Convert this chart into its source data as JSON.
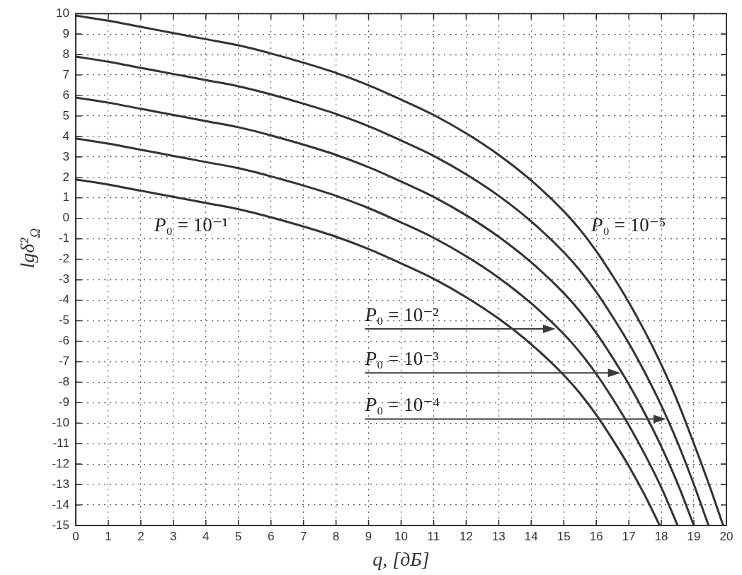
{
  "chart_data": {
    "type": "line",
    "xlabel": "q, [дБ]",
    "ylabel": "lgδ²$_{Ω}$",
    "xlim": [
      0,
      20
    ],
    "ylim": [
      -15,
      10
    ],
    "xticks": [
      0,
      1,
      2,
      3,
      4,
      5,
      6,
      7,
      8,
      9,
      10,
      11,
      12,
      13,
      14,
      15,
      16,
      17,
      18,
      19,
      20
    ],
    "yticks": [
      -15,
      -14,
      -13,
      -12,
      -11,
      -10,
      -9,
      -8,
      -7,
      -6,
      -5,
      -4,
      -3,
      -2,
      -1,
      0,
      1,
      2,
      3,
      4,
      5,
      6,
      7,
      8,
      9,
      10
    ],
    "grid": true,
    "series": [
      {
        "color": "#333333",
        "x": [
          0,
          1,
          2,
          3,
          4,
          5,
          6,
          7,
          8,
          9,
          10,
          11,
          12,
          13,
          14,
          15,
          15.5,
          16,
          16.5,
          17,
          17.5,
          17.95
        ],
        "values": [
          1.9,
          1.65,
          1.35,
          1.05,
          0.75,
          0.45,
          0.05,
          -0.4,
          -0.9,
          -1.5,
          -2.2,
          -2.95,
          -3.85,
          -4.9,
          -6.15,
          -7.65,
          -8.55,
          -9.6,
          -10.8,
          -12.1,
          -13.55,
          -15
        ]
      },
      {
        "color": "#333333",
        "x": [
          0,
          1,
          2,
          3,
          4,
          5,
          6,
          7,
          8,
          9,
          10,
          11,
          12,
          13,
          14,
          15,
          15.5,
          16,
          16.5,
          17,
          17.5,
          18,
          18.5
        ],
        "values": [
          3.9,
          3.65,
          3.35,
          3.05,
          2.75,
          2.45,
          2.05,
          1.6,
          1.1,
          0.5,
          -0.2,
          -0.95,
          -1.85,
          -2.9,
          -4.15,
          -5.65,
          -6.55,
          -7.6,
          -8.8,
          -10.1,
          -11.55,
          -13.15,
          -15
        ]
      },
      {
        "color": "#333333",
        "x": [
          0,
          1,
          2,
          3,
          4,
          5,
          6,
          7,
          8,
          9,
          10,
          11,
          12,
          13,
          14,
          15,
          15.5,
          16,
          16.5,
          17,
          17.5,
          18,
          18.5,
          19
        ],
        "values": [
          5.9,
          5.65,
          5.35,
          5.05,
          4.75,
          4.45,
          4.05,
          3.6,
          3.1,
          2.5,
          1.8,
          1.05,
          0.15,
          -0.9,
          -2.15,
          -3.65,
          -4.55,
          -5.6,
          -6.8,
          -8.1,
          -9.55,
          -11.15,
          -12.95,
          -15
        ]
      },
      {
        "color": "#333333",
        "x": [
          0,
          1,
          2,
          3,
          4,
          5,
          6,
          7,
          8,
          9,
          10,
          11,
          12,
          13,
          14,
          15,
          15.5,
          16,
          16.5,
          17,
          17.5,
          18,
          18.5,
          19,
          19.45
        ],
        "values": [
          7.9,
          7.65,
          7.35,
          7.05,
          6.75,
          6.45,
          6.05,
          5.6,
          5.1,
          4.5,
          3.8,
          3.05,
          2.15,
          1.1,
          -0.15,
          -1.65,
          -2.55,
          -3.6,
          -4.8,
          -6.1,
          -7.55,
          -9.15,
          -10.95,
          -13,
          -15
        ]
      },
      {
        "color": "#333333",
        "x": [
          0,
          1,
          2,
          3,
          4,
          5,
          6,
          7,
          8,
          9,
          10,
          11,
          12,
          13,
          14,
          15,
          15.5,
          16,
          16.5,
          17,
          17.5,
          18,
          18.5,
          19,
          19.5,
          19.9
        ],
        "values": [
          9.9,
          9.65,
          9.35,
          9.05,
          8.75,
          8.45,
          8.05,
          7.6,
          7.1,
          6.5,
          5.8,
          5.05,
          4.15,
          3.1,
          1.85,
          0.35,
          -0.55,
          -1.6,
          -2.8,
          -4.1,
          -5.55,
          -7.15,
          -8.95,
          -11,
          -13.15,
          -15
        ]
      }
    ],
    "annotations": [
      "P₀ = 10⁻¹",
      "P₀ = 10⁻⁵",
      "P₀ = 10⁻²",
      "P₀ = 10⁻³",
      "P₀ = 10⁻⁴"
    ]
  }
}
